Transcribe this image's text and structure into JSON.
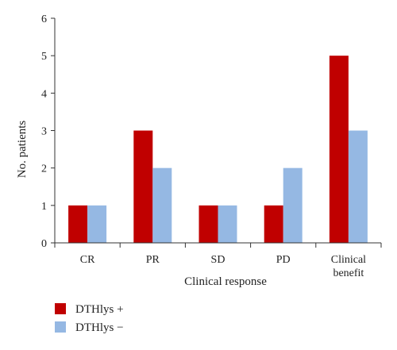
{
  "chart_data": {
    "type": "bar",
    "categories": [
      "CR",
      "PR",
      "SD",
      "PD",
      "Clinical benefit"
    ],
    "category_lines": [
      [
        "CR"
      ],
      [
        "PR"
      ],
      [
        "SD"
      ],
      [
        "PD"
      ],
      [
        "Clinical",
        "benefit"
      ]
    ],
    "series": [
      {
        "name": "DTHlys +",
        "values": [
          1,
          3,
          1,
          1,
          5
        ],
        "color": "#c00000"
      },
      {
        "name": "DTHlys −",
        "values": [
          1,
          2,
          1,
          2,
          3
        ],
        "color": "#95b8e3"
      }
    ],
    "xlabel": "Clinical response",
    "ylabel": "No. patients",
    "ylim": [
      0,
      6
    ],
    "yticks": [
      0,
      1,
      2,
      3,
      4,
      5,
      6
    ],
    "grid": false,
    "legend_position": "bottom-left"
  }
}
